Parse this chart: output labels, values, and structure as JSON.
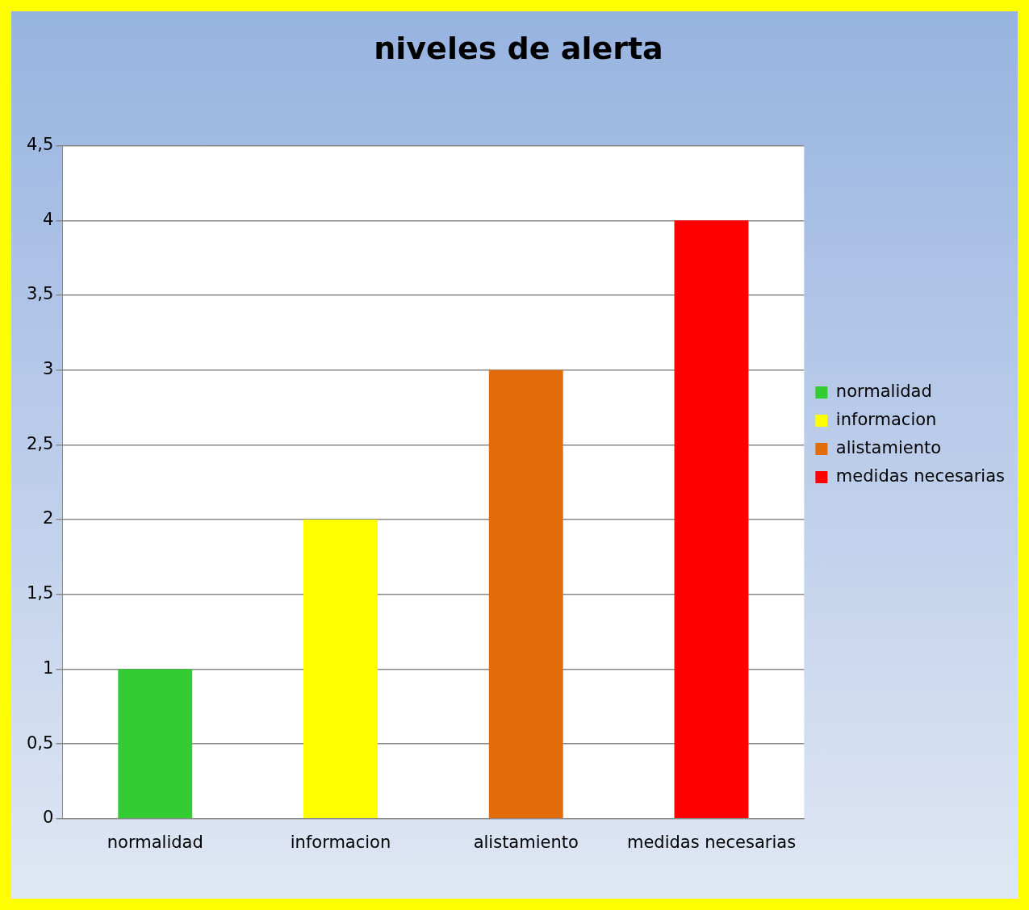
{
  "chart_data": {
    "type": "bar",
    "title": "niveles de alerta",
    "categories": [
      "normalidad",
      "informacion",
      "alistamiento",
      "medidas necesarias"
    ],
    "series": [
      {
        "name": "normalidad",
        "color": "#33cc33",
        "values": [
          1,
          null,
          null,
          null
        ]
      },
      {
        "name": "informacion",
        "color": "#ffff00",
        "values": [
          null,
          2,
          null,
          null
        ]
      },
      {
        "name": "alistamiento",
        "color": "#e36c0a",
        "values": [
          null,
          null,
          3,
          null
        ]
      },
      {
        "name": "medidas necesarias",
        "color": "#ff0000",
        "values": [
          null,
          null,
          null,
          4
        ]
      }
    ],
    "ylim": [
      0,
      4.5
    ],
    "yticks": [
      0,
      {
        "value": 0.5,
        "label": "0,5"
      },
      1,
      {
        "value": 1.5,
        "label": "1,5"
      },
      2,
      {
        "value": 2.5,
        "label": "2,5"
      },
      3,
      {
        "value": 3.5,
        "label": "3,5"
      },
      4,
      {
        "value": 4.5,
        "label": "4,5"
      }
    ],
    "grid": "y",
    "legend": "right"
  }
}
